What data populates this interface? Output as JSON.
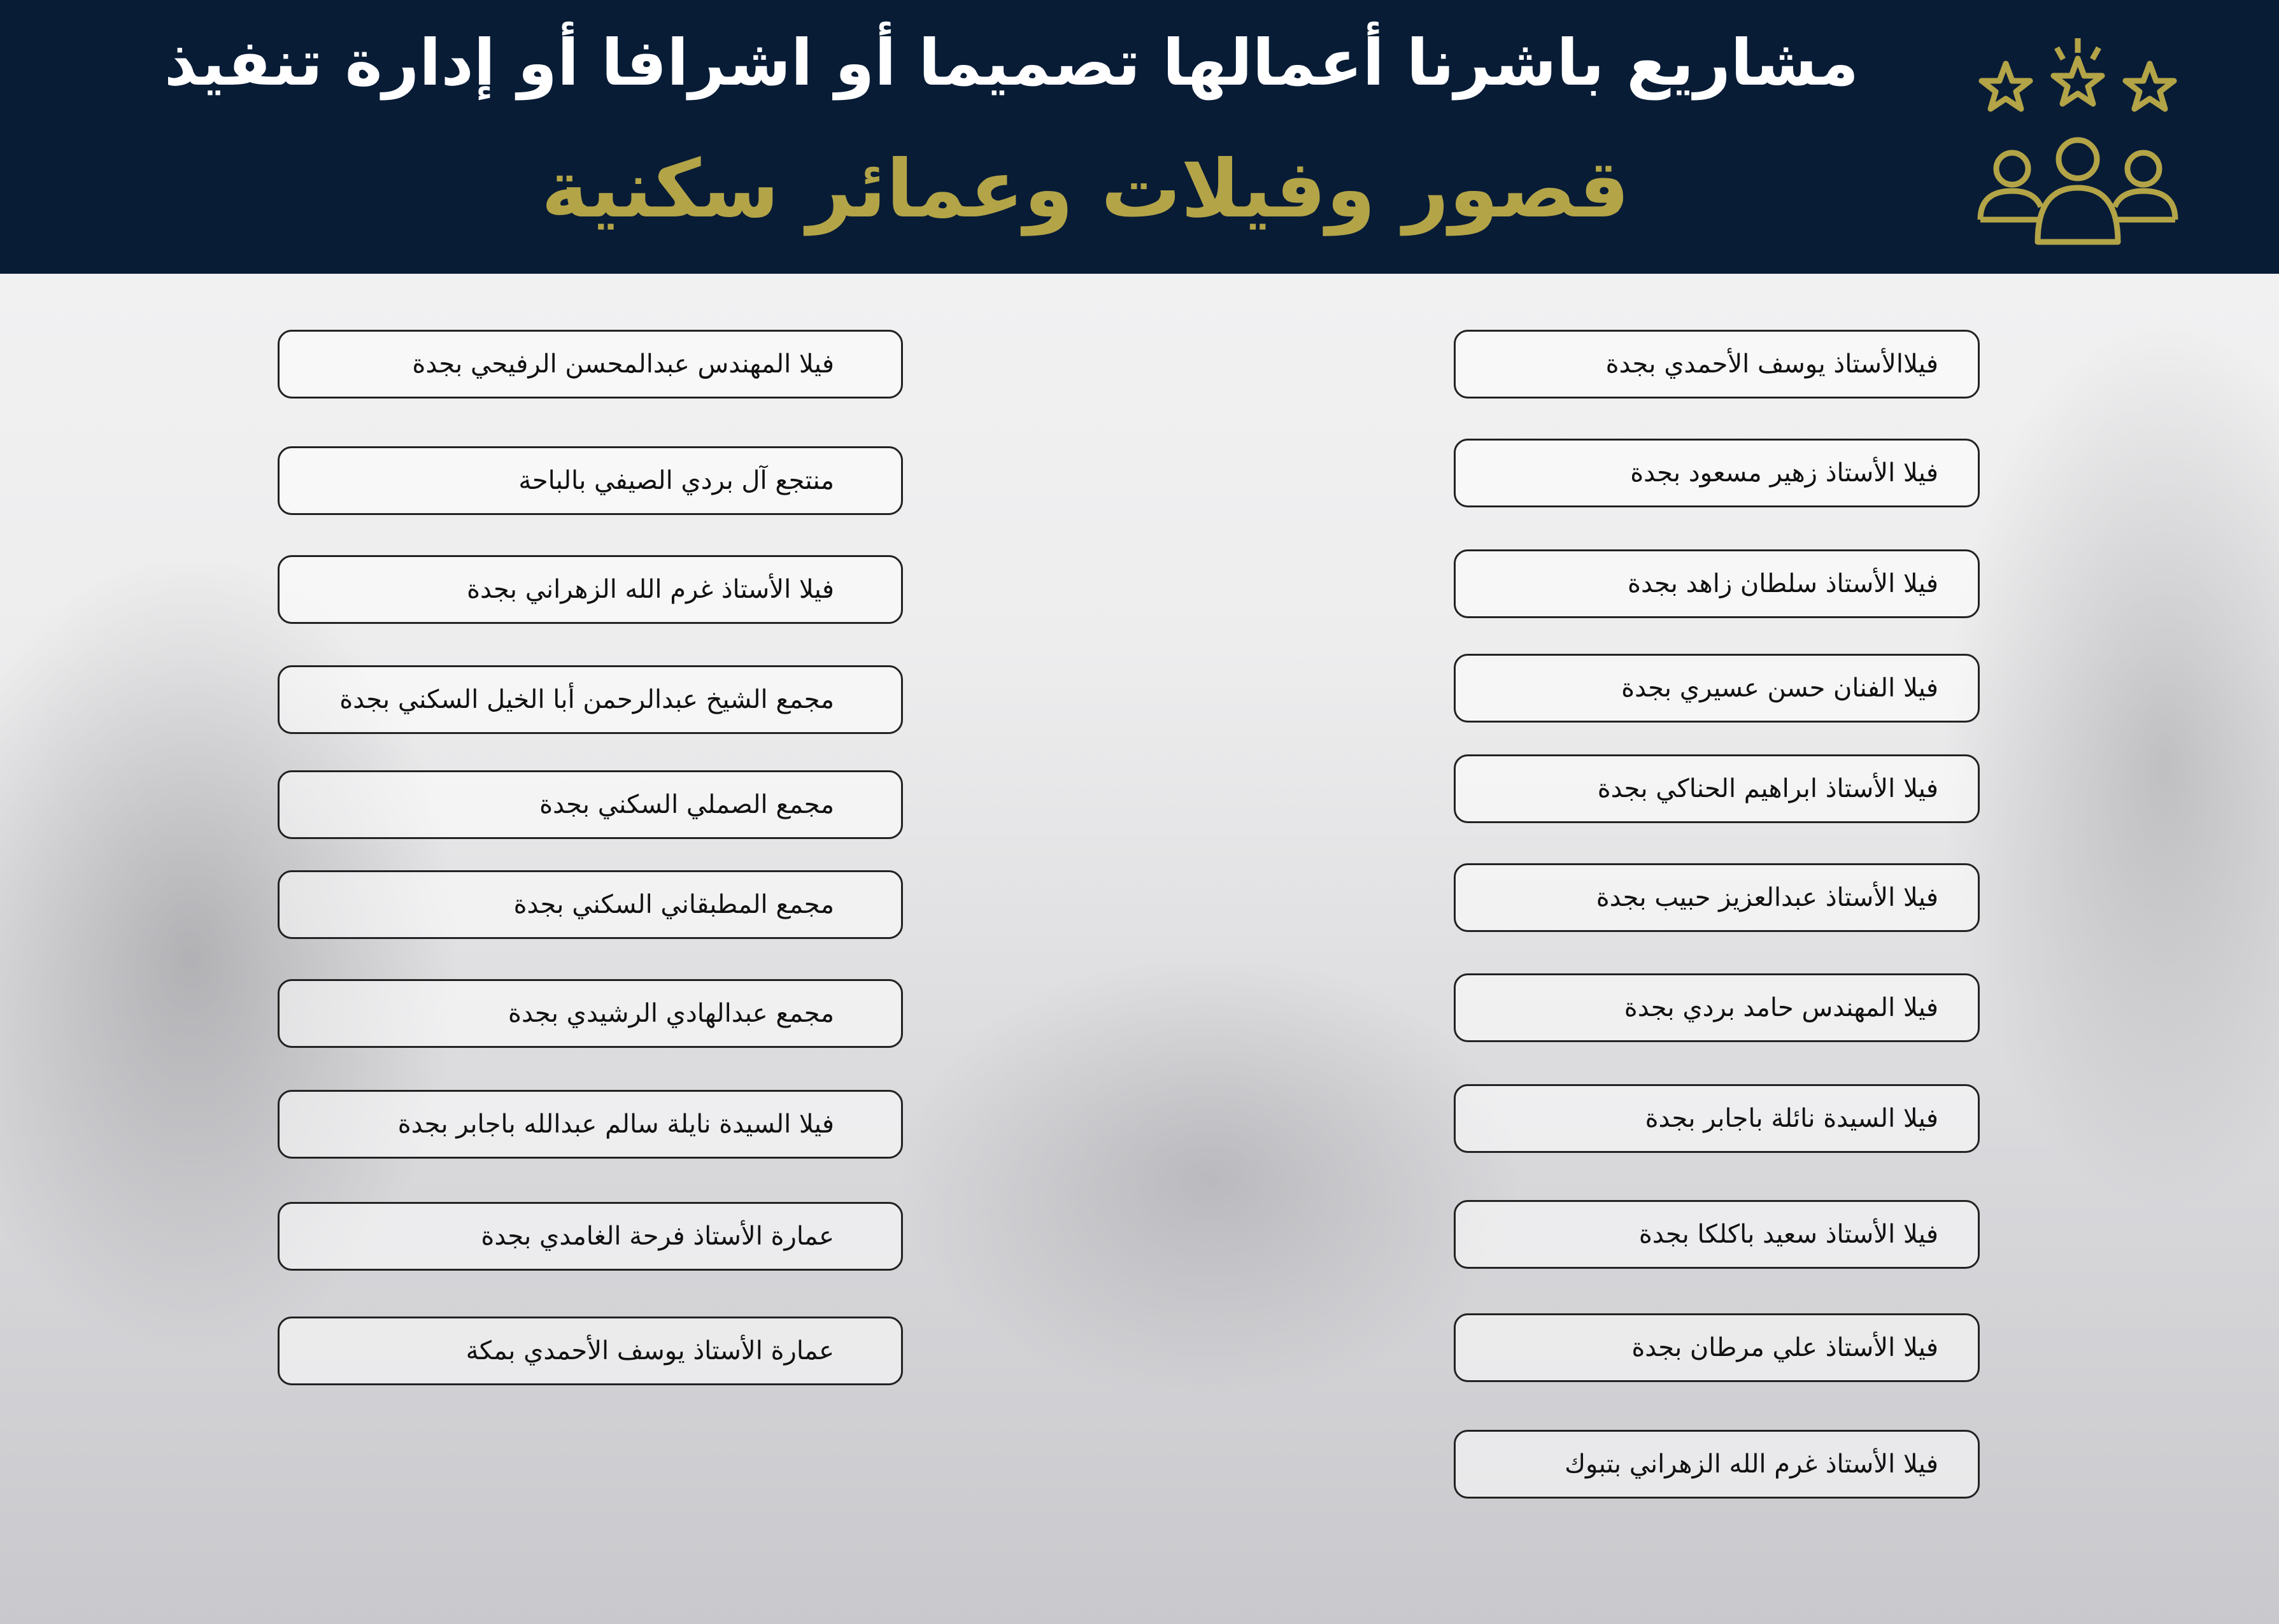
{
  "header": {
    "title": "مشاريع باشرنا أعمالها تصميما أو اشرافا أو إدارة تنفيذ",
    "subtitle": "قصور وفيلات وعمائر  سكنية",
    "accent_color": "#b3a447",
    "background_color": "#081c36",
    "logo_icon": "stars-and-people-icon"
  },
  "left_column": [
    "فيلا المهندس عبدالمحسن الرفيحي بجدة",
    "منتجع آل بردي الصيفي بالباحة",
    "فيلا الأستاذ غرم الله الزهراني بجدة",
    "مجمع الشيخ  عبدالرحمن أبا الخيل السكني بجدة",
    "مجمع الصملي السكني بجدة",
    "مجمع المطبقاني السكني  بجدة",
    "مجمع عبدالهادي الرشيدي بجدة",
    "فيلا السيدة نايلة سالم عبدالله باجابر بجدة",
    "عمارة الأستاذ فرحة الغامدي بجدة",
    "عمارة الأستاذ يوسف الأحمدي بمكة"
  ],
  "right_column": [
    "فيلاالأستاذ  يوسف الأحمدي بجدة",
    "فيلا الأستاذ زهير مسعود بجدة",
    "فيلا الأستاذ سلطان زاهد بجدة",
    "فيلا الفنان حسن عسيري بجدة",
    "فيلا الأستاذ ابراهيم الحناكي بجدة",
    "فيلا الأستاذ عبدالعزيز حبيب بجدة",
    "فيلا المهندس حامد بردي بجدة",
    "فيلا السيدة نائلة باجابر بجدة",
    "فيلا الأستاذ  سعيد باكلكا بجدة",
    "فيلا الأستاذ علي مرطان بجدة",
    "فيلا الأستاذ غرم الله الزهراني بتبوك"
  ]
}
